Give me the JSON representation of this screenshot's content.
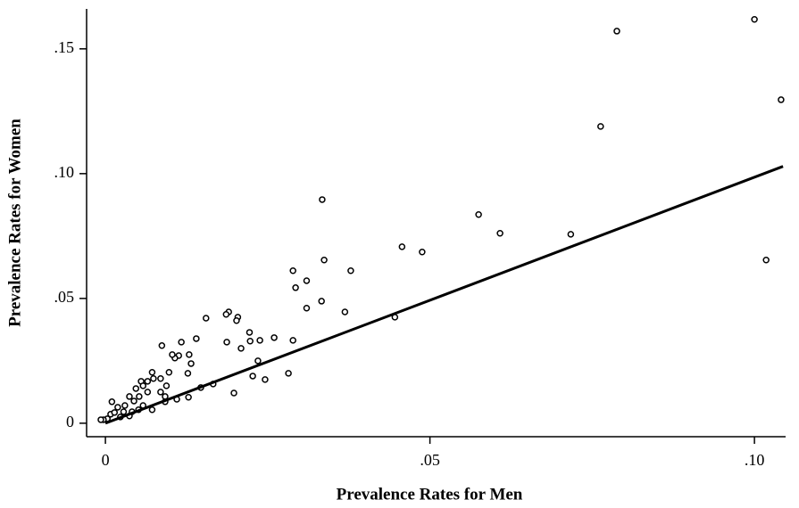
{
  "chart_data": {
    "type": "scatter",
    "xlabel": "Prevalence Rates for Men",
    "ylabel": "Prevalence Rates for Women",
    "color": "#000000",
    "xlim": [
      -0.0029,
      0.1048
    ],
    "ylim": [
      -0.0054,
      0.166
    ],
    "xticks": [
      0,
      {
        "value": 0.05,
        "label": ".05"
      },
      {
        "value": 0.1,
        "label": ".10"
      }
    ],
    "yticks": [
      0,
      {
        "value": 0.05,
        "label": ".05"
      },
      {
        "value": 0.1,
        "label": ".10"
      },
      {
        "value": 0.15,
        "label": ".15"
      }
    ],
    "x": [
      0.1,
      0.0788,
      0.0763,
      0.1041,
      0.1018,
      0.0717,
      0.0608,
      0.0575,
      0.0488,
      0.0457,
      0.0334,
      0.0337,
      0.0378,
      0.0369,
      0.0446,
      0.0333,
      0.0289,
      0.0293,
      0.031,
      0.031,
      0.0289,
      0.0282,
      0.026,
      0.0246,
      0.0238,
      0.0235,
      0.0227,
      0.0222,
      0.0223,
      0.0209,
      0.0204,
      0.0202,
      0.019,
      0.0186,
      0.0187,
      0.0198,
      0.0155,
      0.014,
      0.0129,
      0.0132,
      0.0127,
      0.0117,
      0.0113,
      0.0107,
      0.0103,
      0.0098,
      0.0087,
      0.0085,
      0.0166,
      0.0147,
      0.0128,
      0.011,
      0.0092,
      0.0072,
      0.0074,
      0.0065,
      0.0055,
      0.0047,
      0.0065,
      0.0085,
      0.0092,
      0.0052,
      0.0037,
      0.0072,
      0.0058,
      0.0041,
      0.003,
      0.0019,
      0.001,
      0.0008,
      0.0023,
      0.0037,
      0.0003,
      -0.0003,
      -0.0007,
      0.0014,
      0.0028,
      0.0051,
      0.0044,
      0.0094,
      0.0058
    ],
    "values": [
      0.1618,
      0.1571,
      0.1189,
      0.1296,
      0.0654,
      0.0757,
      0.0761,
      0.0836,
      0.0686,
      0.0707,
      0.0896,
      0.0654,
      0.0611,
      0.0446,
      0.0425,
      0.0489,
      0.0611,
      0.0543,
      0.0571,
      0.0461,
      0.0332,
      0.02,
      0.0343,
      0.0175,
      0.0332,
      0.025,
      0.0189,
      0.0364,
      0.0329,
      0.03,
      0.0425,
      0.0411,
      0.0446,
      0.0436,
      0.0325,
      0.0121,
      0.0421,
      0.0339,
      0.0275,
      0.0239,
      0.02,
      0.0325,
      0.0271,
      0.0261,
      0.0275,
      0.0204,
      0.0311,
      0.0179,
      0.0157,
      0.0143,
      0.0104,
      0.0096,
      0.0086,
      0.0204,
      0.0179,
      0.0168,
      0.0168,
      0.0139,
      0.0125,
      0.0125,
      0.0107,
      0.0107,
      0.0107,
      0.0054,
      0.0071,
      0.0046,
      0.0071,
      0.0064,
      0.0086,
      0.0036,
      0.0025,
      0.0029,
      0.0018,
      0.0014,
      0.0014,
      0.0043,
      0.0046,
      0.0054,
      0.0089,
      0.015,
      0.015
    ],
    "fit_line": {
      "x": [
        0,
        0.1044
      ],
      "values": [
        0,
        0.1029
      ]
    }
  }
}
